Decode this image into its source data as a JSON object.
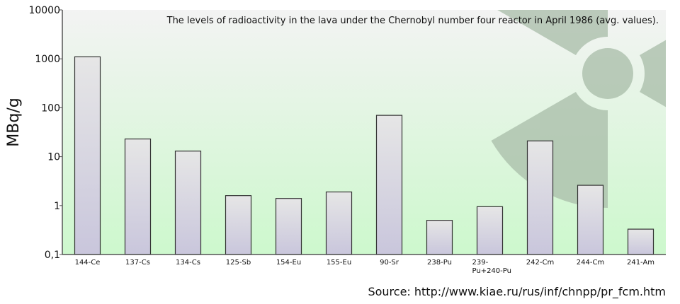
{
  "chart_data": {
    "type": "bar",
    "title": "The levels of radioactivity in the lava under the Chernobyl number four reactor in April 1986 (avg. values).",
    "ylabel": "MBq/g",
    "xlabel": "",
    "yscale": "log",
    "ylim": [
      0.1,
      10000
    ],
    "yticks": [
      "0,1",
      "1",
      "10",
      "100",
      "1000",
      "10000"
    ],
    "categories": [
      "144-Ce",
      "137-Cs",
      "134-Cs",
      "125-Sb",
      "154-Eu",
      "155-Eu",
      "90-Sr",
      "238-Pu",
      "239-Pu+240-Pu",
      "242-Cm",
      "244-Cm",
      "241-Am"
    ],
    "category_lines": [
      [
        "144-Ce"
      ],
      [
        "137-Cs"
      ],
      [
        "134-Cs"
      ],
      [
        "125-Sb"
      ],
      [
        "154-Eu"
      ],
      [
        "155-Eu"
      ],
      [
        "90-Sr"
      ],
      [
        "238-Pu"
      ],
      [
        "239-",
        "Pu+240-Pu"
      ],
      [
        "242-Cm"
      ],
      [
        "244-Cm"
      ],
      [
        "241-Am"
      ]
    ],
    "values": [
      1100,
      23,
      13,
      1.6,
      1.4,
      1.9,
      70,
      0.5,
      0.95,
      21,
      2.6,
      0.33
    ],
    "grid": false,
    "watermark": "radiation-trefoil",
    "colors": {
      "bar_fill_top": "#e6e6e6",
      "bar_fill_bottom": "#c9c6dc",
      "bar_stroke": "#333333",
      "bg_top": "#f2f2f2",
      "bg_bottom": "#ccf7cc",
      "trefoil": "#a8bca8"
    }
  },
  "source": "Source: http://www.kiae.ru/rus/inf/chnpp/pr_fcm.htm"
}
